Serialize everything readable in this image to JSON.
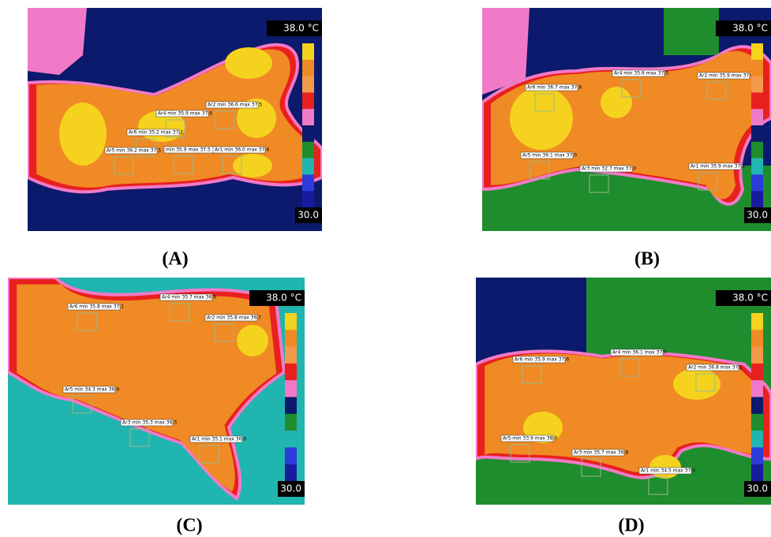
{
  "panels": [
    {
      "label": "(A)",
      "scale_max": "38.0 °C",
      "scale_min": "30.0",
      "regions": [
        "Ar2 min 36.6 max 37.5",
        "Ar4 min 35.9 max 37.6",
        "Ar6 min 35.2 max 37.2",
        "Ar5 min 36.2 max 37.5",
        "min 35.9 max 37.5",
        "Ar1 min 36.0 max 37.4"
      ]
    },
    {
      "label": "(B)",
      "scale_max": "38.0 °C",
      "scale_min": "30.0",
      "regions": [
        "Ar4 min 35.6 max 37.0",
        "Ar2 min 35.9 max 37.0",
        "Ar6 min 36.7 max 37.8",
        "Ar5 min 36.1 max 37.0",
        "Ar3 min 32.7 max 37.0",
        "Ar1 min 35.9 max 37.2"
      ]
    },
    {
      "label": "(C)",
      "scale_max": "38.0 °C",
      "scale_min": "30.0",
      "regions": [
        "Ar4 min 35.7 max 36.6",
        "Ar6 min 35.8 max 37.1",
        "Ar2 min 35.8 max 36.7",
        "Ar5 min 34.3 max 36.9",
        "Ar3 min 35.3 max 36.3",
        "Ar1 min 35.1 max 36.0"
      ]
    },
    {
      "label": "(D)",
      "scale_max": "38.0 °C",
      "scale_min": "30.0",
      "regions": [
        "Ar4 min 36.1 max 37.0",
        "Ar6 min 35.9 max 37.6",
        "Ar2 min 36.8 max 37.1",
        "Ar5 min 33.9 max 38.0",
        "Ar3 min 35.7 max 36.8",
        "Ar1 min 34.5 max 37.0"
      ]
    }
  ]
}
